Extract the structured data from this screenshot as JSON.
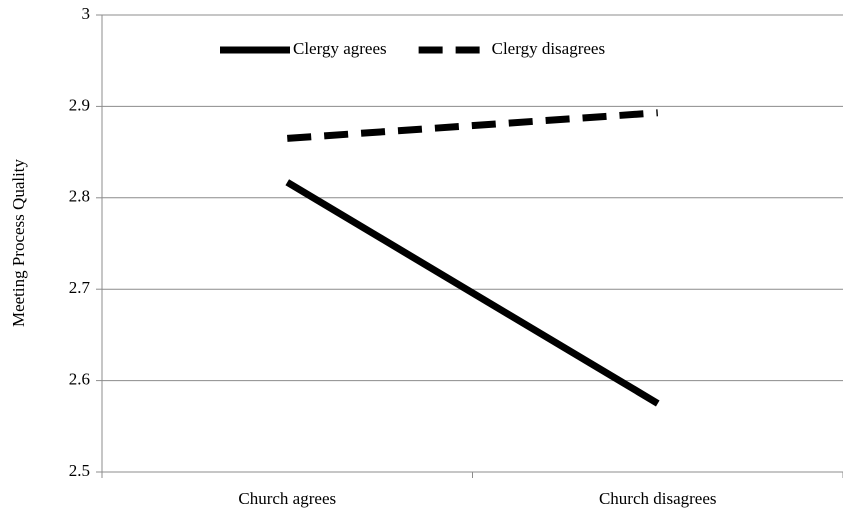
{
  "chart_data": {
    "type": "line",
    "y_label": "Meeting Process Quality",
    "categories": [
      "Church agrees",
      "Church disagrees"
    ],
    "series": [
      {
        "name": "Clergy agrees",
        "color": "#000000",
        "style": "solid",
        "values": [
          2.817,
          2.575
        ]
      },
      {
        "name": "Clergy disagrees",
        "color": "#000000",
        "style": "dashed",
        "values": [
          2.865,
          2.893
        ]
      }
    ],
    "ylim": [
      2.5,
      3
    ],
    "yticks": [
      2.5,
      2.6,
      2.7,
      2.8,
      2.9,
      3
    ],
    "grid": true,
    "legend": "top"
  }
}
